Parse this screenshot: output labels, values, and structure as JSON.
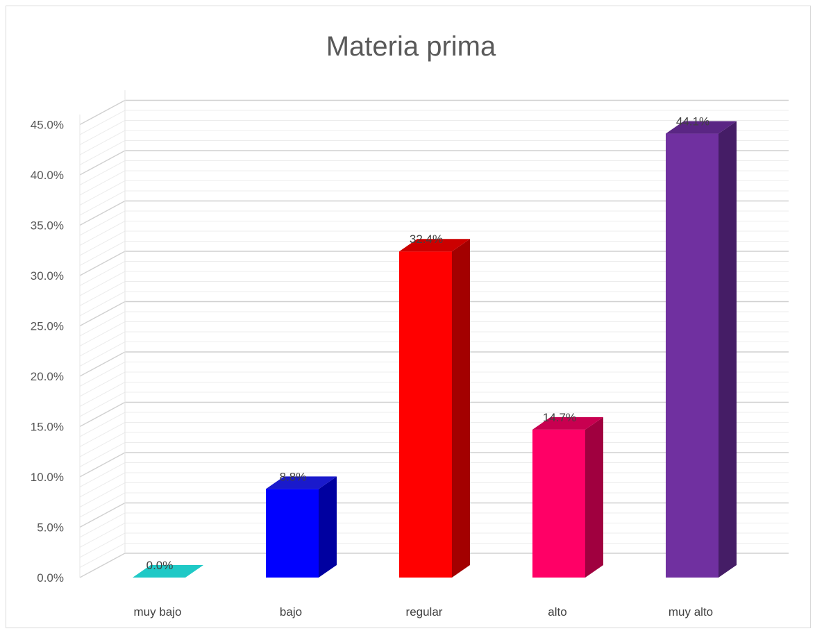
{
  "chart_data": {
    "type": "bar",
    "title": "Materia prima",
    "categories": [
      "muy bajo",
      "bajo",
      "regular",
      "alto",
      "muy alto"
    ],
    "values": [
      0.0,
      8.8,
      32.4,
      14.7,
      44.1
    ],
    "data_labels": [
      "0.0%",
      "8.8%",
      "32.4%",
      "14.7%",
      "44.1%"
    ],
    "y_ticks": [
      "0.0%",
      "5.0%",
      "10.0%",
      "15.0%",
      "20.0%",
      "25.0%",
      "30.0%",
      "35.0%",
      "40.0%",
      "45.0%"
    ],
    "ylim": [
      0,
      45
    ],
    "grid": true,
    "style_3d": true,
    "colors": [
      {
        "front": "#14c0bd",
        "top": "#1fc9c6",
        "side": "#0e8f8d"
      },
      {
        "front": "#0000ff",
        "top": "#1a1acc",
        "side": "#0000a0"
      },
      {
        "front": "#ff0000",
        "top": "#cc0000",
        "side": "#a30000"
      },
      {
        "front": "#ff0066",
        "top": "#c80050",
        "side": "#a0003f"
      },
      {
        "front": "#7030a0",
        "top": "#5a2684",
        "side": "#451d66"
      }
    ]
  }
}
